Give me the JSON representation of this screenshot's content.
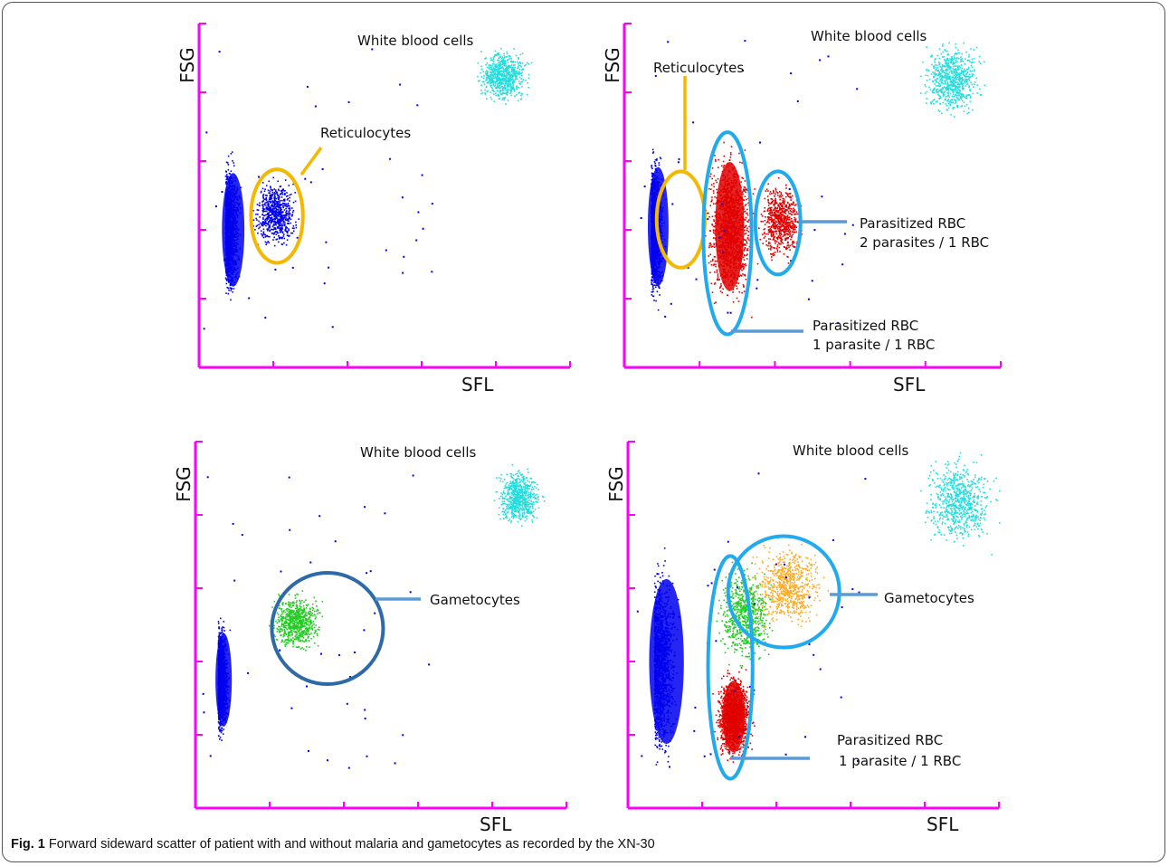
{
  "figure": {
    "caption_label": "Fig. 1",
    "caption_text": "Forward sideward scatter of patient with and without malaria and gametocytes as recorded by the XN-30"
  },
  "colors": {
    "axis": "#ff00ff",
    "rbc": "#0000ee",
    "wbc": "#22dddd",
    "parasitized": "#e00000",
    "gametocyte_green": "#22cc22",
    "gametocyte_orange": "#ffaa22",
    "reticulocyte_gate": "#f5b800",
    "parasite_gate": "#22aaee",
    "gametocyte_gate": "#2f6aa8",
    "callout": "#5b9bd5"
  },
  "chart_data": [
    {
      "type": "scatter",
      "panel": "top-left",
      "xlabel": "SFL",
      "ylabel": "FSG",
      "ylim": [
        0,
        5
      ],
      "xlim": [
        0,
        5
      ],
      "annotations": [
        "White blood cells",
        "Reticulocytes"
      ],
      "populations": [
        {
          "name": "RBC",
          "color": "rbc",
          "x_range": [
            0.35,
            0.9
          ],
          "y_range": [
            0.9,
            3.1
          ]
        },
        {
          "name": "Reticulocytes",
          "color": "rbc",
          "x_range": [
            0.7,
            1.35
          ],
          "y_range": [
            1.7,
            2.8
          ]
        },
        {
          "name": "White blood cells",
          "color": "wbc",
          "x_range": [
            3.7,
            4.5
          ],
          "y_range": [
            3.8,
            4.7
          ]
        }
      ],
      "gates": [
        {
          "label": "Reticulocytes",
          "shape": "ellipse",
          "color": "reticulocyte_gate",
          "center": [
            1.05,
            2.2
          ],
          "radii": [
            0.35,
            0.68
          ]
        }
      ]
    },
    {
      "type": "scatter",
      "panel": "top-right",
      "xlabel": "SFL",
      "ylabel": "FSG",
      "ylim": [
        0,
        5
      ],
      "xlim": [
        0,
        5
      ],
      "annotations": [
        "White blood cells",
        "Reticulocytes",
        "Parasitized RBC",
        "2 parasites / 1 RBC",
        "Parasitized RBC",
        "1 parasite / 1 RBC"
      ],
      "populations": [
        {
          "name": "RBC",
          "color": "rbc",
          "x_range": [
            0.35,
            0.85
          ],
          "y_range": [
            0.9,
            3.2
          ]
        },
        {
          "name": "1 parasite / 1 RBC",
          "color": "parasitized",
          "x_range": [
            1.05,
            1.75
          ],
          "y_range": [
            0.8,
            3.3
          ]
        },
        {
          "name": "2 parasites / 1 RBC",
          "color": "parasitized",
          "x_range": [
            1.75,
            2.4
          ],
          "y_range": [
            1.5,
            2.8
          ]
        },
        {
          "name": "White blood cells",
          "color": "wbc",
          "x_range": [
            3.9,
            4.8
          ],
          "y_range": [
            3.6,
            4.8
          ]
        }
      ],
      "gates": [
        {
          "label": "Reticulocytes",
          "shape": "ellipse",
          "color": "reticulocyte_gate",
          "center": [
            0.75,
            2.15
          ],
          "radii": [
            0.32,
            0.7
          ]
        },
        {
          "label": "Parasitized RBC 1 parasite / 1 RBC",
          "shape": "ellipse",
          "color": "parasite_gate",
          "center": [
            1.37,
            1.95
          ],
          "radii": [
            0.32,
            1.47
          ]
        },
        {
          "label": "Parasitized RBC 2 parasites / 1 RBC",
          "shape": "ellipse",
          "color": "parasite_gate",
          "center": [
            2.04,
            2.1
          ],
          "radii": [
            0.3,
            0.75
          ]
        }
      ]
    },
    {
      "type": "scatter",
      "panel": "bottom-left",
      "xlabel": "SFL",
      "ylabel": "FSG",
      "ylim": [
        0,
        5
      ],
      "xlim": [
        0,
        5
      ],
      "annotations": [
        "White blood cells",
        "Gametocytes"
      ],
      "populations": [
        {
          "name": "RBC",
          "color": "rbc",
          "x_range": [
            0.3,
            0.7
          ],
          "y_range": [
            0.9,
            2.6
          ]
        },
        {
          "name": "Gametocytes",
          "color": "gametocyte_green",
          "x_range": [
            0.95,
            1.75
          ],
          "y_range": [
            2.1,
            3.0
          ]
        },
        {
          "name": "White blood cells",
          "color": "wbc",
          "x_range": [
            4.0,
            4.7
          ],
          "y_range": [
            3.8,
            4.7
          ]
        }
      ],
      "gates": [
        {
          "label": "Gametocytes",
          "shape": "circle",
          "color": "gametocyte_gate",
          "center": [
            1.78,
            2.45
          ],
          "radii": [
            0.75,
            0.75
          ]
        }
      ]
    },
    {
      "type": "scatter",
      "panel": "bottom-right",
      "xlabel": "SFL",
      "ylabel": "FSG",
      "ylim": [
        0,
        5
      ],
      "xlim": [
        0,
        5
      ],
      "annotations": [
        "White blood cells",
        "Gametocytes",
        "Parasitized RBC",
        "1 parasite / 1 RBC"
      ],
      "populations": [
        {
          "name": "RBC",
          "color": "rbc",
          "x_range": [
            0.35,
            1.2
          ],
          "y_range": [
            0.5,
            3.5
          ]
        },
        {
          "name": "1 parasite / 1 RBC",
          "color": "parasitized",
          "x_range": [
            1.15,
            1.7
          ],
          "y_range": [
            0.6,
            1.9
          ]
        },
        {
          "name": "Gametocytes (green)",
          "color": "gametocyte_green",
          "x_range": [
            1.15,
            2.0
          ],
          "y_range": [
            1.9,
            3.4
          ]
        },
        {
          "name": "Gametocytes (orange)",
          "color": "gametocyte_orange",
          "x_range": [
            1.6,
            2.7
          ],
          "y_range": [
            2.4,
            3.7
          ]
        },
        {
          "name": "White blood cells",
          "color": "wbc",
          "x_range": [
            3.9,
            5.0
          ],
          "y_range": [
            3.5,
            4.9
          ]
        }
      ],
      "gates": [
        {
          "label": "Gametocytes",
          "shape": "circle",
          "color": "parasite_gate",
          "center": [
            2.1,
            2.95
          ],
          "radii": [
            0.75,
            0.75
          ]
        },
        {
          "label": "Parasitized RBC 1 parasite / 1 RBC",
          "shape": "ellipse",
          "color": "parasite_gate",
          "center": [
            1.38,
            1.92
          ],
          "radii": [
            0.3,
            1.52
          ]
        }
      ]
    }
  ]
}
